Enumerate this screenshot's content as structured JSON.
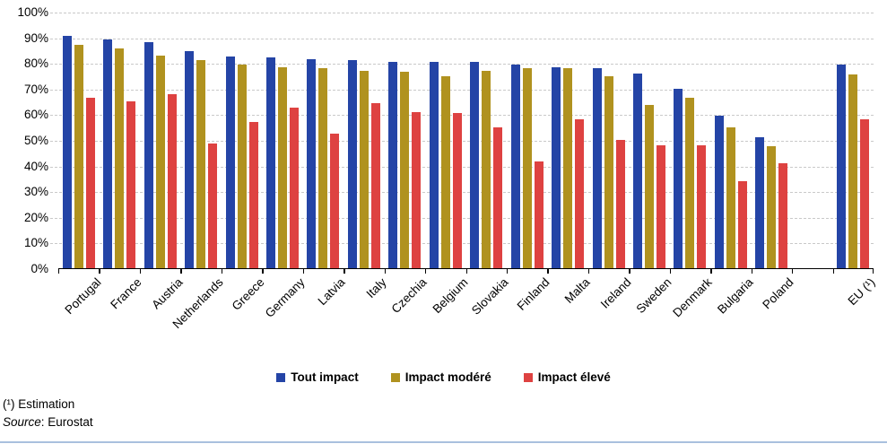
{
  "chart_data": {
    "type": "bar",
    "title": "",
    "categories": [
      "Portugal",
      "France",
      "Austria",
      "Netherlands",
      "Greece",
      "Germany",
      "Latvia",
      "Italy",
      "Czechia",
      "Belgium",
      "Slovakia",
      "Finland",
      "Malta",
      "Ireland",
      "Sweden",
      "Denmark",
      "Bulgaria",
      "Poland",
      "EU (¹)"
    ],
    "series": [
      {
        "name": "Tout impact",
        "color": "#2444A6",
        "values": [
          90.5,
          89,
          88,
          84.5,
          82.5,
          82,
          81.5,
          81,
          80.5,
          80.5,
          80.5,
          79.5,
          78.5,
          78,
          76,
          70,
          59.5,
          51,
          79.5
        ]
      },
      {
        "name": "Impact modéré",
        "color": "#B0921F",
        "values": [
          87,
          85.5,
          83,
          81,
          79.5,
          78.5,
          78,
          77,
          76.5,
          75,
          77,
          78,
          78,
          75,
          63.5,
          66.5,
          55,
          47.5,
          75.5
        ]
      },
      {
        "name": "Impact élevé",
        "color": "#DE4241",
        "values": [
          66.5,
          65,
          68,
          48.5,
          57,
          62.5,
          52.5,
          64.5,
          61,
          60.5,
          55,
          41.5,
          58,
          50,
          48,
          48,
          34,
          41,
          58
        ]
      }
    ],
    "xlabel": "",
    "ylabel": "",
    "ylim": [
      0,
      100
    ],
    "ytick_step": 10,
    "ytick_suffix": "%",
    "grid": "horizontal-dashed",
    "legend_position": "bottom",
    "gap_before_last_category": true
  },
  "footnotes": {
    "estimation": "(¹) Estimation",
    "source_label": "Source",
    "source_colon": ": ",
    "source_value": "Eurostat"
  },
  "colors": {
    "grid": "#C9C9C9",
    "axis": "#000000",
    "bottom_rule": "#A9C0DE"
  }
}
